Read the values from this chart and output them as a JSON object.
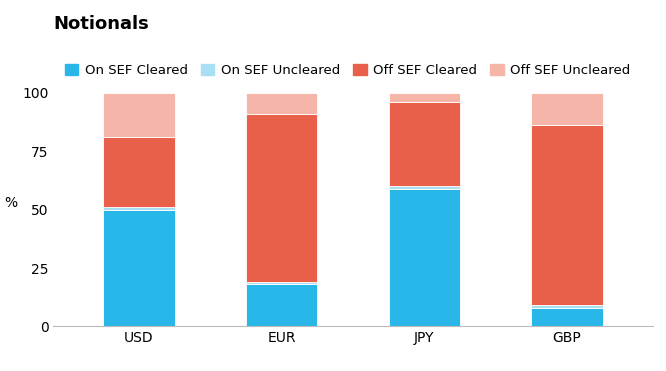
{
  "title": "Notionals",
  "categories": [
    "USD",
    "EUR",
    "JPY",
    "GBP"
  ],
  "series": {
    "On SEF Cleared": [
      50,
      18,
      59,
      8
    ],
    "On SEF Uncleared": [
      1,
      1,
      1,
      1
    ],
    "Off SEF Cleared": [
      30,
      72,
      36,
      77
    ],
    "Off SEF Uncleared": [
      19,
      9,
      4,
      14
    ]
  },
  "colors": {
    "On SEF Cleared": "#29b6e8",
    "On SEF Uncleared": "#a8dff5",
    "Off SEF Cleared": "#e8604a",
    "Off SEF Uncleared": "#f5b5a8"
  },
  "ylabel": "%",
  "ylim": [
    0,
    100
  ],
  "yticks": [
    0,
    25,
    50,
    75,
    100
  ],
  "bar_width": 0.5,
  "background_color": "#ffffff",
  "title_fontsize": 13,
  "tick_fontsize": 10,
  "legend_fontsize": 9.5
}
